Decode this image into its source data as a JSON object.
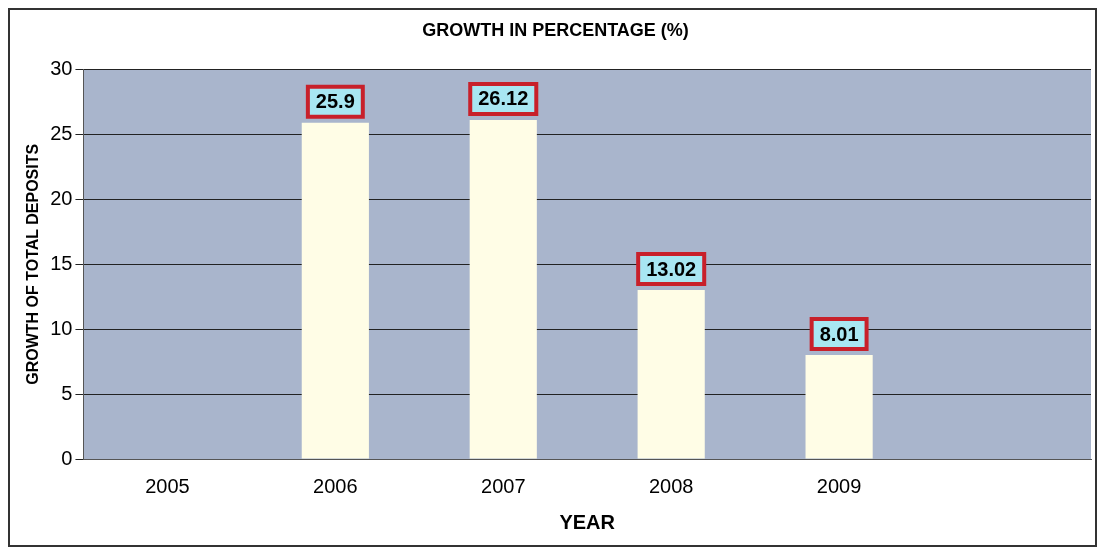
{
  "chart_data": {
    "type": "bar",
    "title": "GROWTH IN PERCENTAGE (%)",
    "xlabel": "YEAR",
    "ylabel": "GROWTH OF TOTAL DEPOSITS",
    "categories": [
      "2005",
      "2006",
      "2007",
      "2008",
      "2009",
      null
    ],
    "values": [
      null,
      25.9,
      26.12,
      13.02,
      8.01,
      null
    ],
    "color": "#fffde6",
    "ylim": [
      0,
      30
    ],
    "yticks": [
      0,
      5,
      10,
      15,
      20,
      25,
      30
    ],
    "grid": "y",
    "data_labels": true,
    "legend": false
  }
}
